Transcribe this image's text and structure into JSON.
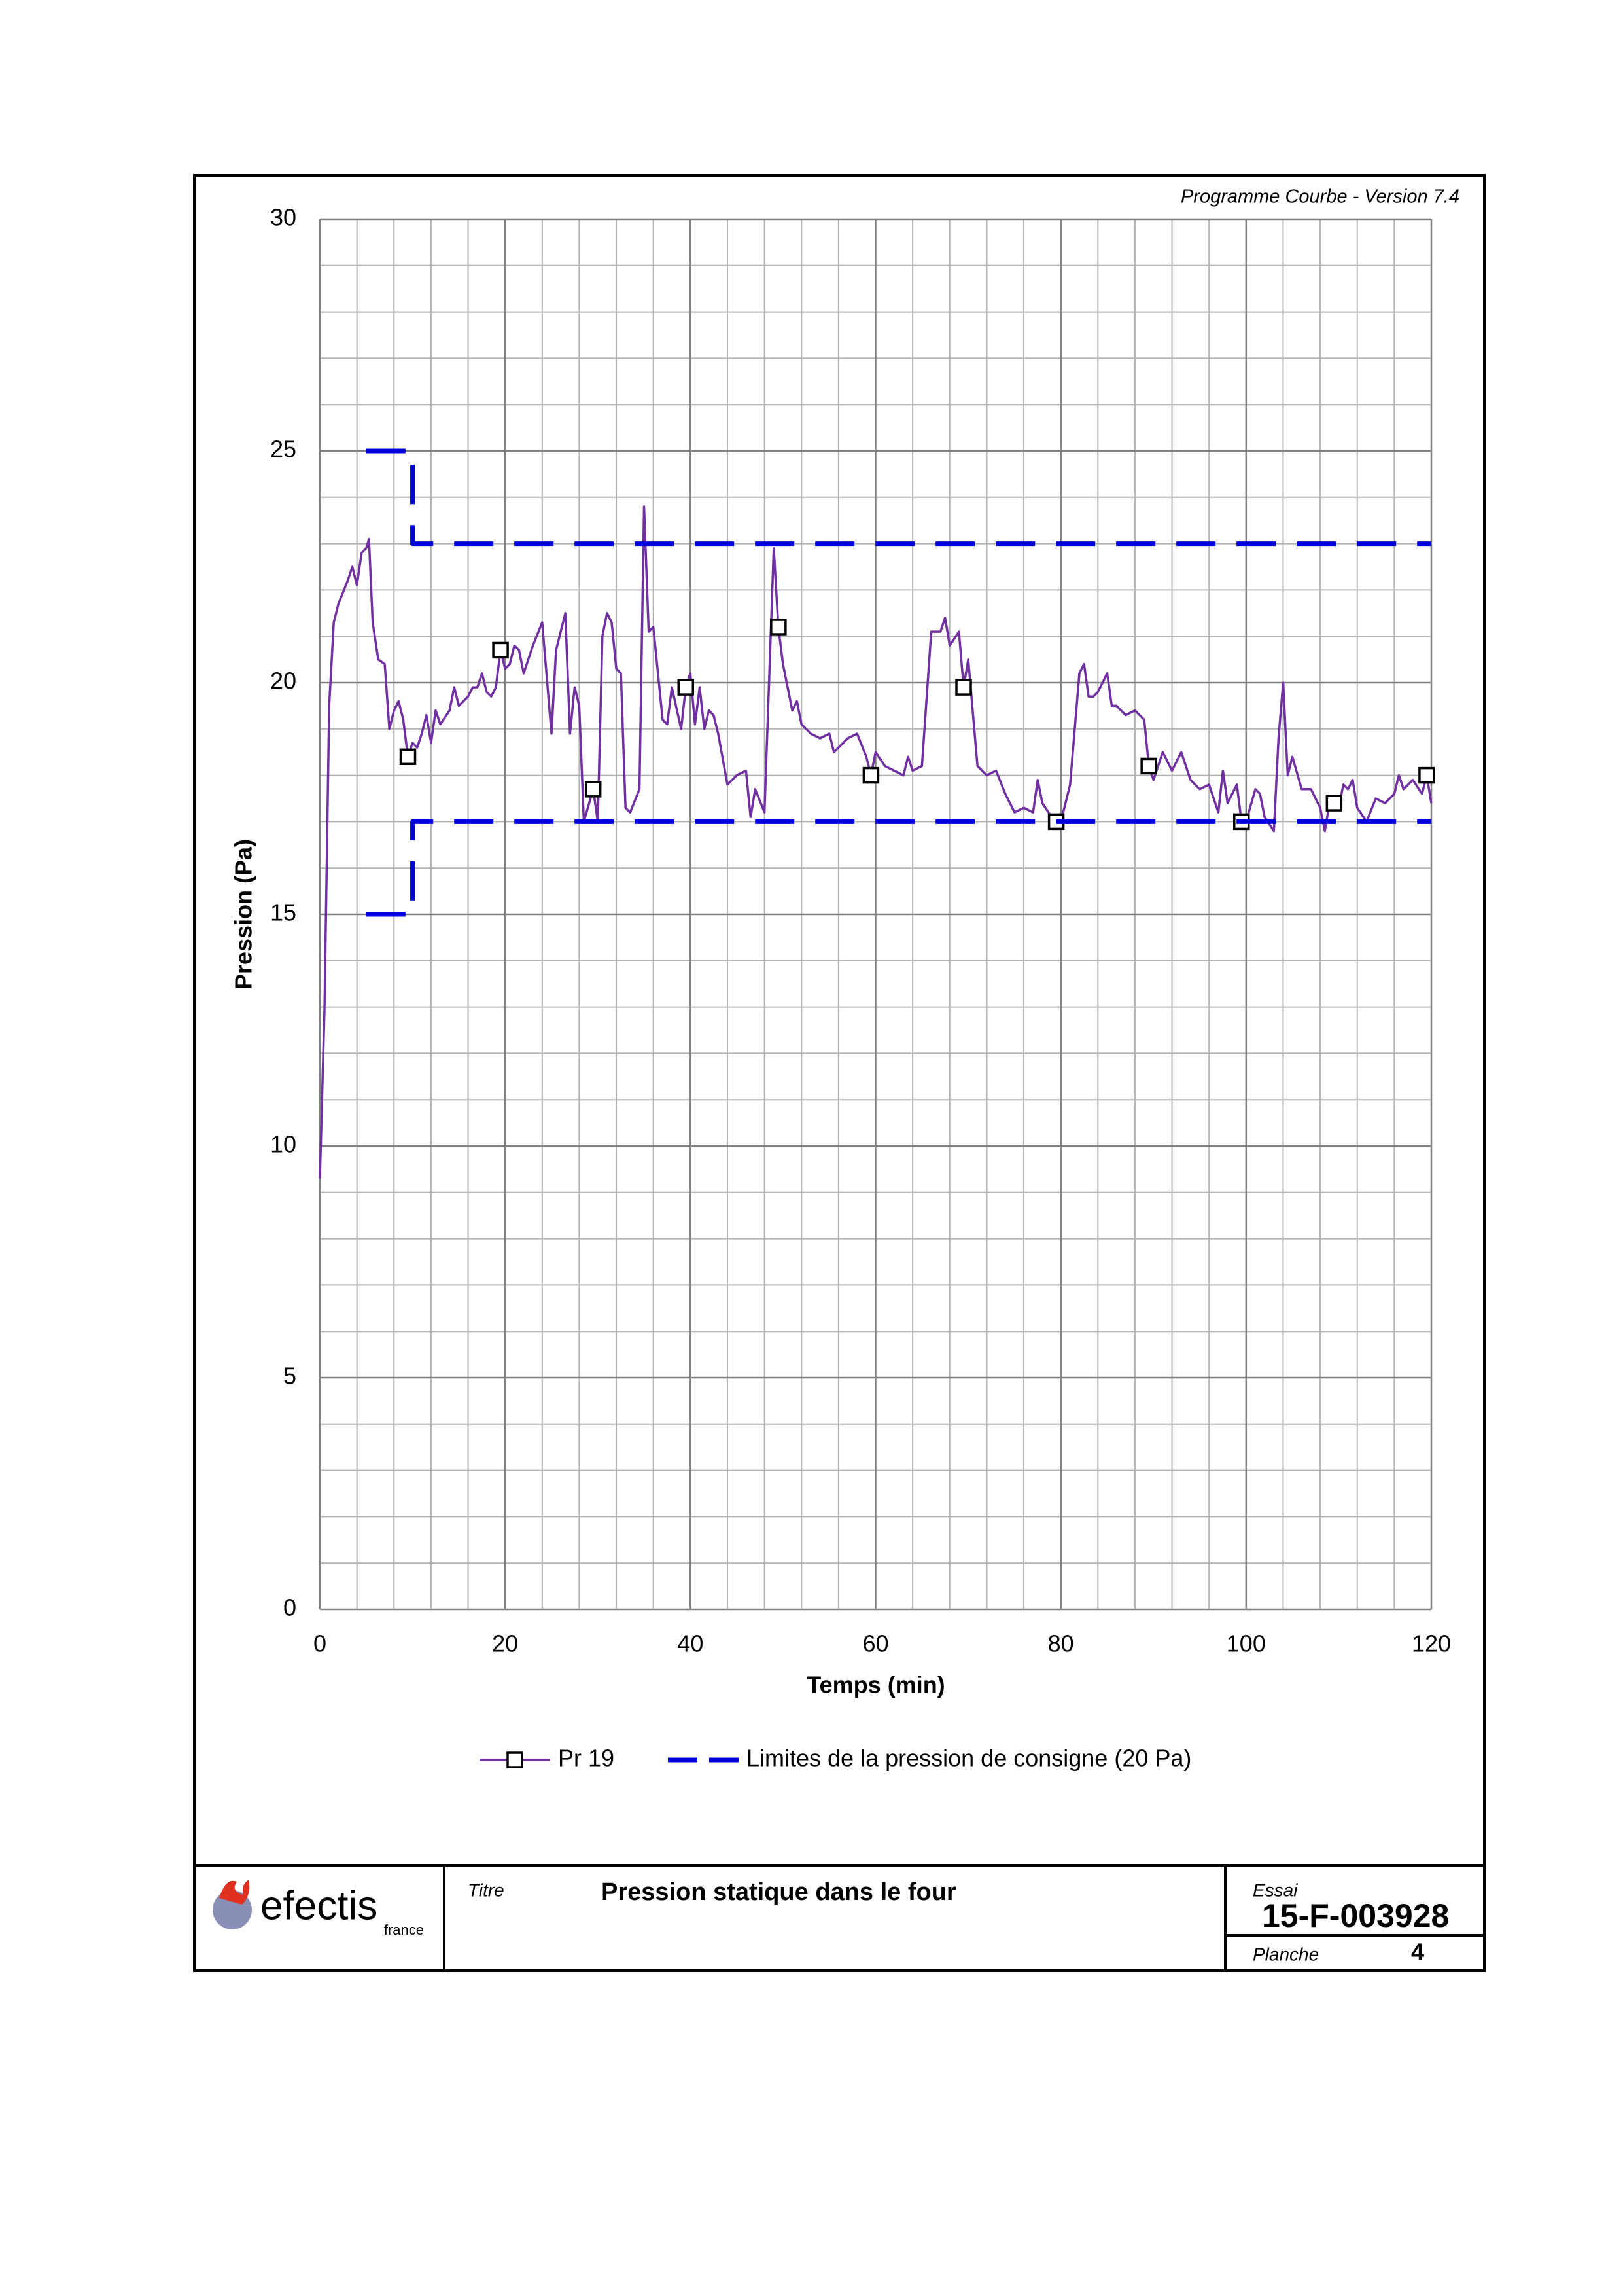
{
  "chart_data": {
    "type": "line",
    "version_note": "Programme Courbe  - Version 7.4",
    "xlabel": "Temps (min)",
    "ylabel": "Pression (Pa)",
    "xlim": [
      0,
      120
    ],
    "ylim": [
      0,
      30
    ],
    "xticks": [
      0,
      20,
      40,
      60,
      80,
      100,
      120
    ],
    "yticks": [
      0,
      5,
      10,
      15,
      20,
      25,
      30
    ],
    "grid": true,
    "minor_grid": {
      "x": 4,
      "y": 1
    },
    "legend_position": "bottom",
    "series": [
      {
        "name": "Pr 19",
        "color": "#7030a0",
        "marker": "square",
        "marker_x": [
          9.5,
          19.5,
          29.5,
          39.5,
          49.5,
          59.5,
          69.5,
          79.5,
          89.5,
          99.5,
          109.5,
          119.5
        ],
        "x": [
          0,
          0.5,
          1,
          1.5,
          2,
          3,
          3.5,
          4,
          4.5,
          5,
          5.3,
          5.7,
          6.3,
          7,
          7.5,
          8,
          8.5,
          9,
          9.5,
          10,
          10.5,
          11,
          11.5,
          12,
          12.5,
          13,
          14,
          14.5,
          15,
          16,
          16.5,
          17,
          17.5,
          18,
          18.5,
          19,
          19.5,
          20,
          20.5,
          21,
          21.5,
          22,
          23,
          24,
          25,
          25.5,
          26.5,
          27,
          27.5,
          28,
          28.5,
          29.5,
          30,
          30.5,
          31,
          31.5,
          32,
          32.5,
          33,
          33.5,
          34.5,
          35,
          35.5,
          36,
          37,
          37.5,
          38,
          39,
          39.5,
          40,
          40.5,
          41,
          41.5,
          42,
          42.5,
          43,
          44,
          45,
          46,
          46.5,
          47,
          48,
          49,
          49.5,
          50,
          51,
          51.5,
          52,
          53,
          54,
          55,
          55.5,
          56,
          57,
          58,
          59,
          59.5,
          60,
          61,
          62,
          63,
          63.5,
          64,
          65,
          66,
          67,
          67.5,
          68,
          69,
          69.5,
          70,
          71,
          72,
          73,
          74,
          75,
          76,
          77,
          77.5,
          78,
          79,
          79.5,
          80,
          81,
          82,
          82.5,
          83,
          83.5,
          84,
          85,
          85.5,
          86,
          87,
          88,
          89,
          89.5,
          90,
          91,
          92,
          93,
          94,
          95,
          96,
          97,
          97.5,
          98,
          99,
          99.5,
          100,
          101,
          101.5,
          102,
          103,
          103.5,
          104,
          104.5,
          105,
          106,
          107,
          108,
          108.5,
          109,
          109.5,
          110,
          110.5,
          111,
          111.5,
          112,
          113,
          114,
          115,
          116,
          116.5,
          117,
          118,
          119,
          119.5,
          120
        ],
        "values": [
          9.3,
          13,
          19.5,
          21.3,
          21.7,
          22.2,
          22.5,
          22.1,
          22.8,
          22.9,
          23.1,
          21.3,
          20.5,
          20.4,
          19,
          19.4,
          19.6,
          19.2,
          18.4,
          18.7,
          18.6,
          18.9,
          19.3,
          18.7,
          19.4,
          19.1,
          19.4,
          19.9,
          19.5,
          19.7,
          19.9,
          19.9,
          20.2,
          19.8,
          19.7,
          19.9,
          20.7,
          20.3,
          20.4,
          20.8,
          20.7,
          20.2,
          20.8,
          21.3,
          18.9,
          20.7,
          21.5,
          18.9,
          19.9,
          19.5,
          17,
          17.7,
          17,
          21,
          21.5,
          21.3,
          20.3,
          20.2,
          17.3,
          17.2,
          17.7,
          23.8,
          21.1,
          21.2,
          19.2,
          19.1,
          19.9,
          19,
          19.9,
          20.2,
          19.1,
          19.9,
          19,
          19.4,
          19.3,
          18.9,
          17.8,
          18,
          18.1,
          17.1,
          17.7,
          17.2,
          22.9,
          21.2,
          20.4,
          19.4,
          19.6,
          19.1,
          18.9,
          18.8,
          18.9,
          18.5,
          18.6,
          18.8,
          18.9,
          18.4,
          18,
          18.5,
          18.2,
          18.1,
          18,
          18.4,
          18.1,
          18.2,
          21.1,
          21.1,
          21.4,
          20.8,
          21.1,
          19.9,
          20.5,
          18.2,
          18,
          18.1,
          17.6,
          17.2,
          17.3,
          17.2,
          17.9,
          17.4,
          17.1,
          17,
          17,
          17.8,
          20.2,
          20.4,
          19.7,
          19.7,
          19.8,
          20.2,
          19.5,
          19.5,
          19.3,
          19.4,
          19.2,
          18.2,
          17.9,
          18.5,
          18.1,
          18.5,
          17.9,
          17.7,
          17.8,
          17.2,
          18.1,
          17.4,
          17.8,
          17,
          17,
          17.7,
          17.6,
          17.1,
          16.8,
          18.8,
          20,
          18,
          18.4,
          17.7,
          17.7,
          17.3,
          16.8,
          17.4,
          17.4,
          17.3,
          17.8,
          17.7,
          17.9,
          17.3,
          17,
          17.5,
          17.4,
          17.6,
          18,
          17.7,
          17.9,
          17.6,
          18,
          17.4
        ]
      },
      {
        "name": "Limites de la pression de consigne (20 Pa)",
        "color": "#0000dd",
        "dashed": true,
        "x": [
          5,
          10,
          10,
          120,
          null,
          5,
          10,
          10,
          120
        ],
        "values": [
          25,
          25,
          23,
          23,
          null,
          15,
          15,
          17,
          17
        ]
      }
    ]
  },
  "footer": {
    "logo": "efectis",
    "logo_sub": "france",
    "title_label": "Titre",
    "title": "Pression statique dans le four",
    "test_label": "Essai",
    "test_id": "15-F-003928",
    "sheet_label": "Planche",
    "sheet": "4"
  }
}
